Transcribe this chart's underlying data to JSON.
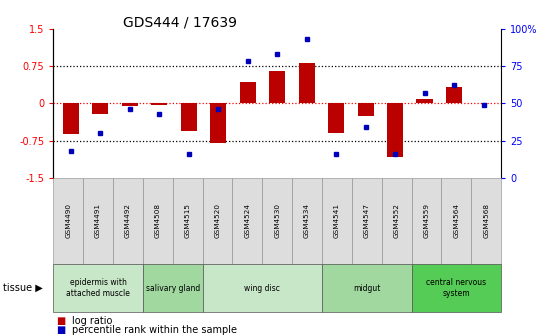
{
  "title": "GDS444 / 17639",
  "samples": [
    "GSM4490",
    "GSM4491",
    "GSM4492",
    "GSM4508",
    "GSM4515",
    "GSM4520",
    "GSM4524",
    "GSM4530",
    "GSM4534",
    "GSM4541",
    "GSM4547",
    "GSM4552",
    "GSM4559",
    "GSM4564",
    "GSM4568"
  ],
  "log_ratio": [
    -0.62,
    -0.22,
    -0.05,
    -0.04,
    -0.55,
    -0.8,
    0.42,
    0.65,
    0.8,
    -0.6,
    -0.25,
    -1.08,
    0.08,
    0.32,
    0.0
  ],
  "percentile": [
    18,
    30,
    46,
    43,
    16,
    46,
    78,
    83,
    93,
    16,
    34,
    16,
    57,
    62,
    49
  ],
  "tissue_groups": [
    {
      "label": "epidermis with\nattached muscle",
      "start": 0,
      "end": 2,
      "color": "#c8e6c8"
    },
    {
      "label": "salivary gland",
      "start": 3,
      "end": 4,
      "color": "#a0d8a0"
    },
    {
      "label": "wing disc",
      "start": 5,
      "end": 8,
      "color": "#c8e6c8"
    },
    {
      "label": "midgut",
      "start": 9,
      "end": 11,
      "color": "#a0d8a0"
    },
    {
      "label": "central nervous\nsystem",
      "start": 12,
      "end": 14,
      "color": "#55cc55"
    }
  ],
  "bar_color": "#bb0000",
  "dot_color": "#0000bb",
  "ylim": [
    -1.5,
    1.5
  ],
  "yticks_left": [
    -1.5,
    -0.75,
    0.0,
    0.75,
    1.5
  ],
  "yticks_right": [
    0,
    25,
    50,
    75,
    100
  ],
  "hlines_black": [
    -0.75,
    0.75
  ],
  "hline_red": 0.0
}
